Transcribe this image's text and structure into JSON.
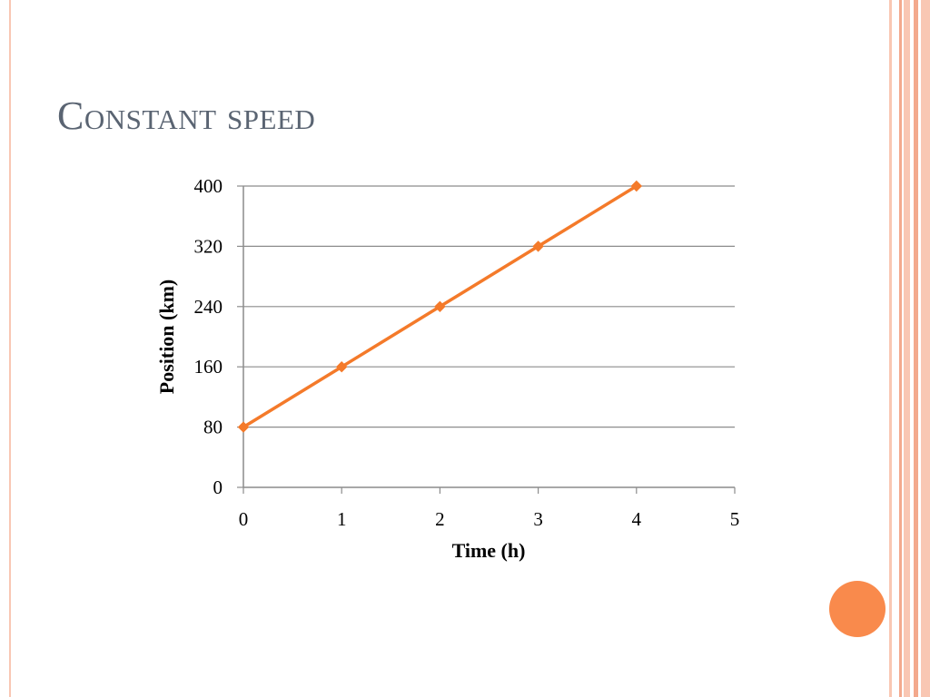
{
  "slide": {
    "title": "Constant speed"
  },
  "colors": {
    "title_text": "#5a6472",
    "series_line": "#f47a2a",
    "series_marker": "#f47a2a",
    "gridline": "#8c8c8c",
    "axis_text": "#000000",
    "frame_light": "#f9c7b3",
    "frame_dark": "#f3a98d",
    "accent_dot": "#f98a4c"
  },
  "decor": {
    "accent_dot": "orange-circle",
    "frame": "salmon-stripes"
  },
  "chart_data": {
    "type": "line",
    "title": "",
    "xlabel": "Time (h)",
    "ylabel": "Position (km)",
    "xlim": [
      0,
      5
    ],
    "ylim": [
      0,
      400
    ],
    "x_ticks": [
      "0",
      "1",
      "2",
      "3",
      "4",
      "5"
    ],
    "y_ticks": [
      "0",
      "80",
      "160",
      "240",
      "320",
      "400"
    ],
    "grid": "horizontal",
    "legend": "none",
    "series": [
      {
        "marker": "diamond",
        "points": [
          {
            "x": 0,
            "y": 80
          },
          {
            "x": 1,
            "y": 160
          },
          {
            "x": 2,
            "y": 240
          },
          {
            "x": 3,
            "y": 320
          },
          {
            "x": 4,
            "y": 400
          }
        ]
      }
    ]
  }
}
